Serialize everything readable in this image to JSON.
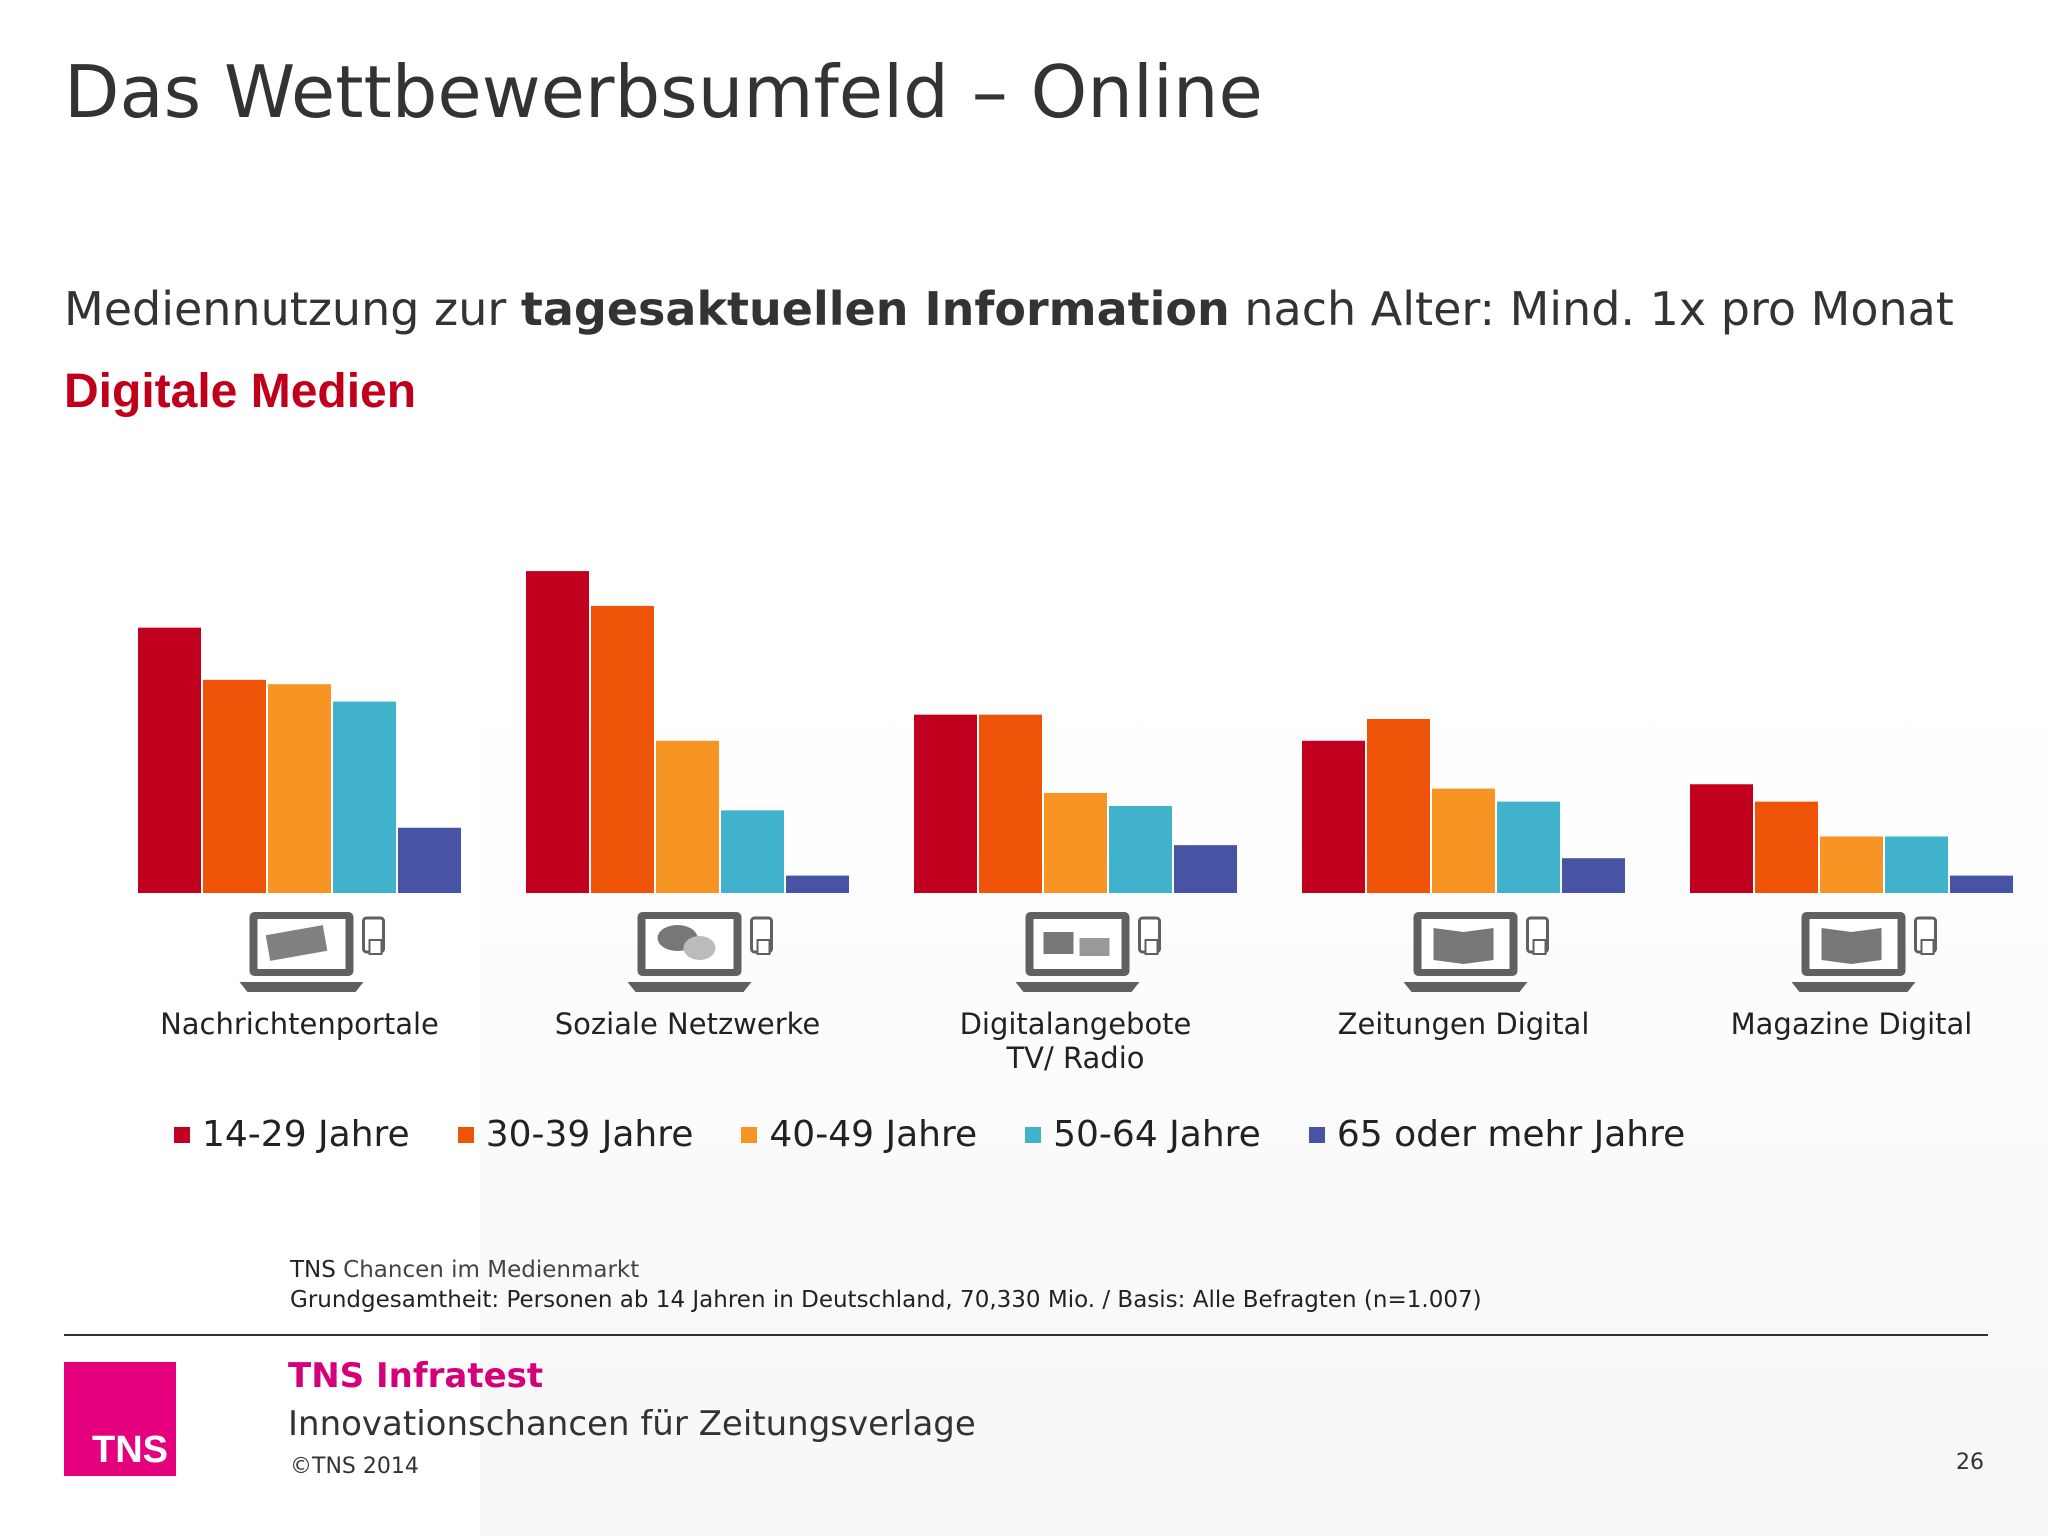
{
  "slide": {
    "title": "Das Wettbewerbsumfeld – Online",
    "subtitle_pre": "Mediennutzung zur ",
    "subtitle_bold": "tagesaktuellen Information",
    "subtitle_post": " nach Alter: Mind. 1x pro Monat",
    "section": "Digitale Medien",
    "source_org": "TNS",
    "source_name": " Chancen im Medienmarkt",
    "source_basis": "Grundgesamtheit: Personen ab 14 Jahren in Deutschland, 70,330 Mio. / Basis: Alle Befragten (n=1.007)",
    "company": "TNS Infratest",
    "report": "Innovationschancen für Zeitungsverlage",
    "copyright": "©TNS 2014",
    "page_number": "26",
    "logo_text": "TNS"
  },
  "chart_data": {
    "type": "bar",
    "categories": [
      "Nachrichtenportale",
      "Soziale Netzwerke",
      "Digitalangebote\nTV/ Radio",
      "Zeitungen Digital",
      "Magazine Digital"
    ],
    "category_icons": [
      "laptop-news-icon",
      "laptop-social-icon",
      "laptop-tv-radio-icon",
      "laptop-newspaper-icon",
      "laptop-magazine-icon"
    ],
    "series": [
      {
        "name": "14-29 Jahre",
        "color": "#c1001f",
        "values": [
          61,
          74,
          41,
          35,
          25
        ]
      },
      {
        "name": "30-39 Jahre",
        "color": "#ee5307",
        "values": [
          49,
          66,
          41,
          40,
          21
        ]
      },
      {
        "name": "40-49 Jahre",
        "color": "#f69424",
        "values": [
          48,
          35,
          23,
          24,
          13
        ]
      },
      {
        "name": "50-64 Jahre",
        "color": "#41b2cb",
        "values": [
          44,
          19,
          20,
          21,
          13
        ]
      },
      {
        "name": "65 oder mehr Jahre",
        "color": "#4654a3",
        "values": [
          15,
          4,
          11,
          8,
          4
        ]
      }
    ],
    "ylim": [
      0,
      100
    ],
    "grid": false,
    "legend_position": "bottom",
    "xlabel": "",
    "ylabel": ""
  }
}
